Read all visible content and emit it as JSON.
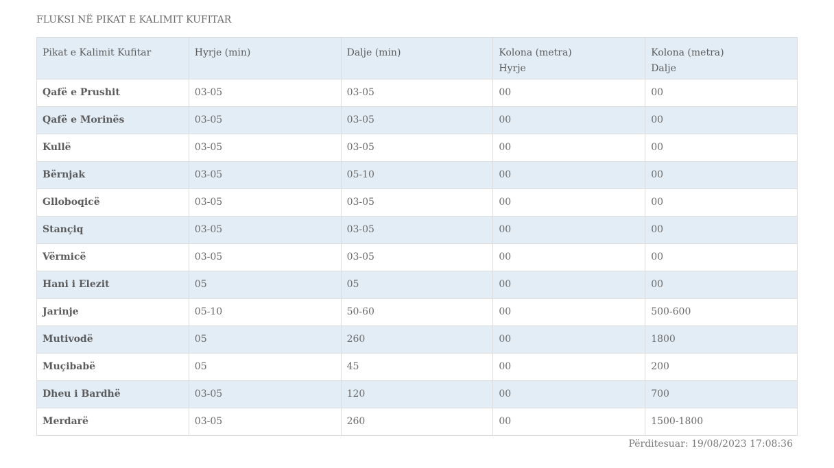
{
  "title": "FLUKSI NË PIKAT E KALIMIT KUFITAR",
  "headers": [
    {
      "line1": "Pikat e Kalimit Kufitar",
      "line2": ""
    },
    {
      "line1": "Hyrje (min)",
      "line2": ""
    },
    {
      "line1": "Dalje (min)",
      "line2": ""
    },
    {
      "line1": "Kolona (metra)",
      "line2": "Hyrje"
    },
    {
      "line1": "Kolona (metra)",
      "line2": "Dalje"
    }
  ],
  "rows": [
    [
      "Qafë e Prushit",
      "03-05",
      "03-05",
      "00",
      "00"
    ],
    [
      "Qafë e Morinës",
      "03-05",
      "03-05",
      "00",
      "00"
    ],
    [
      "Kullë",
      "03-05",
      "03-05",
      "00",
      "00"
    ],
    [
      "Bërnjak",
      "03-05",
      "05-10",
      "00",
      "00"
    ],
    [
      "Glloboqicë",
      "03-05",
      "03-05",
      "00",
      "00"
    ],
    [
      "Stançiq",
      "03-05",
      "03-05",
      "00",
      "00"
    ],
    [
      "Vërmicë",
      "03-05",
      "03-05",
      "00",
      "00"
    ],
    [
      "Hani i Elezit",
      "05",
      "05",
      "00",
      "00"
    ],
    [
      "Jarinje",
      "05-10",
      "50-60",
      "00",
      "500-600"
    ],
    [
      "Mutivodë",
      "05",
      "260",
      "00",
      "1800"
    ],
    [
      "Muçibabë",
      "05",
      "45",
      "00",
      "200"
    ],
    [
      "Dheu i Bardhë",
      "03-05",
      "120",
      "00",
      "700"
    ],
    [
      "Merdarë",
      "03-05",
      "260",
      "00",
      "1500-1800"
    ]
  ],
  "updated": "Përditesuar: 19/08/2023 17:08:36"
}
